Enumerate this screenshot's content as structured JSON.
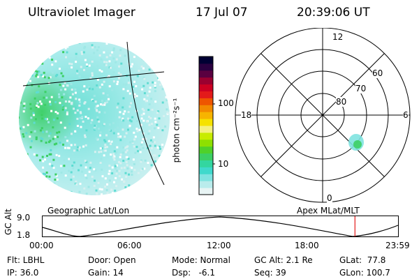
{
  "header": {
    "title": "Ultraviolet Imager",
    "date": "17 Jul 07",
    "time": "20:39:06 UT"
  },
  "colorbar": {
    "unit_label": "photon cm⁻²s⁻¹",
    "ticks": [
      "100",
      "10"
    ],
    "colors": [
      "#e8f4f4",
      "#b9ecec",
      "#7fe3e0",
      "#3fd9cc",
      "#33d6a0",
      "#3ccf64",
      "#4fd12a",
      "#8ee000",
      "#c8ec00",
      "#f5f080",
      "#f6e200",
      "#f7b400",
      "#f28a00",
      "#ee5500",
      "#e31a1a",
      "#cc0022",
      "#9a0030",
      "#5a0040",
      "#2a0040",
      "#000033"
    ],
    "tick_positions": [
      0.75,
      0.25
    ]
  },
  "polar": {
    "lat_labels": [
      "80",
      "70",
      "60"
    ],
    "mlt_labels": {
      "top": "12",
      "left": "18",
      "right": "6",
      "bottom": "0"
    }
  },
  "timeline": {
    "left_title": "Geographic Lat/Lon",
    "right_title": "Apex MLat/MLT",
    "y_axis_label": "GC Alt",
    "y_ticks": [
      "9.0",
      "1.8"
    ],
    "x_ticks": [
      "00:00",
      "06:00",
      "12:00",
      "18:00",
      "23:59"
    ],
    "current_fraction": 0.878
  },
  "footer": {
    "flt": "Flt: LBHL",
    "ip": "IP: 36.0",
    "door": "Door: Open",
    "gain": "Gain: 14",
    "mode": "Mode: Normal",
    "dsp": "Dsp:   -6.1",
    "gc_alt": "GC Alt: 2.1 Re",
    "seq": "Seq: 39",
    "glat": "GLat:  77.8",
    "glon": "GLon: 100.7"
  }
}
